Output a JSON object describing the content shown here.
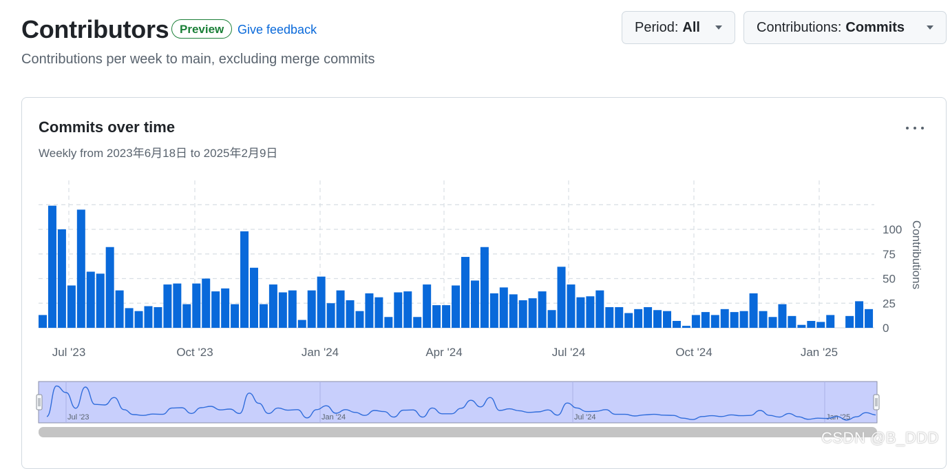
{
  "header": {
    "title": "Contributors",
    "preview_badge": "Preview",
    "feedback_link": "Give feedback",
    "subtitle": "Contributions per week to main, excluding merge commits"
  },
  "controls": {
    "period": {
      "key": "Period:",
      "value": "All"
    },
    "contributions": {
      "key": "Contributions:",
      "value": "Commits"
    }
  },
  "card": {
    "title": "Commits over time",
    "subtitle": "Weekly from 2023年6月18日 to 2025年2月9日"
  },
  "colors": {
    "bar": "#0969da",
    "navigator_fill": "#c8cffc",
    "navigator_line": "#2f6cdb",
    "grid": "#d8dee4",
    "scrollbar": "#c4c4c4"
  },
  "chart_data": {
    "type": "bar",
    "title": "Commits over time",
    "ylabel": "Contributions",
    "ylim": [
      0,
      125
    ],
    "yticks": [
      0,
      25,
      50,
      75,
      100
    ],
    "x_tick_labels": [
      "Jul '23",
      "Oct '23",
      "Jan '24",
      "Apr '24",
      "Jul '24",
      "Oct '24",
      "Jan '25"
    ],
    "navigator_tick_labels": [
      "Jul '23",
      "Jan '24",
      "Jul '24",
      "Jan '25"
    ],
    "grid": true,
    "series": [
      {
        "values": [
          13,
          124,
          100,
          43,
          120,
          57,
          55,
          82,
          38,
          20,
          17,
          22,
          21,
          44,
          45,
          24,
          45,
          50,
          37,
          40,
          24,
          98,
          61,
          24,
          44,
          36,
          38,
          8,
          38,
          52,
          25,
          38,
          28,
          17,
          35,
          31,
          11,
          36,
          37,
          11,
          44,
          23,
          23,
          43,
          72,
          48,
          82,
          35,
          41,
          34,
          28,
          30,
          37,
          18,
          62,
          44,
          31,
          32,
          38,
          21,
          21,
          15,
          19,
          21,
          18,
          17,
          7,
          2,
          13,
          16,
          13,
          19,
          16,
          17,
          35,
          17,
          11,
          24,
          12,
          3,
          7,
          6,
          13,
          0,
          12,
          27,
          19
        ]
      }
    ]
  },
  "watermark": "CSDN @B_DDD"
}
